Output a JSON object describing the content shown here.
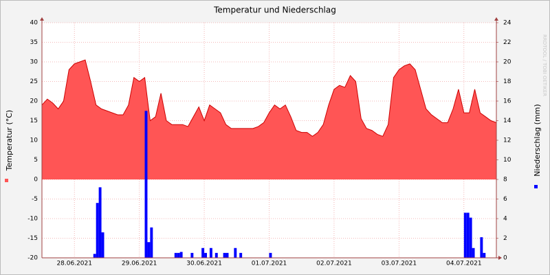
{
  "chart_data": {
    "type": "area-bar",
    "title": "Temperatur und Niederschlag",
    "watermark": "RRDTOOL / TOBI OETIKER",
    "x": [
      0,
      2,
      4,
      6,
      8,
      10,
      12,
      14,
      16,
      18,
      20,
      22,
      24,
      26,
      28,
      30,
      32,
      34,
      36,
      38,
      40,
      42,
      44,
      46,
      48,
      50,
      52,
      54,
      56,
      58,
      60,
      62,
      64,
      66,
      68,
      70,
      72,
      74,
      76,
      78,
      80,
      82,
      84,
      86,
      88,
      90,
      92,
      94,
      96,
      98,
      100,
      102,
      104,
      106,
      108,
      110,
      112,
      114,
      116,
      118,
      120,
      122,
      124,
      126,
      128,
      130,
      132,
      134,
      136,
      138,
      140,
      142,
      144,
      146,
      148,
      150,
      152,
      154,
      156,
      158,
      160,
      162,
      164,
      166,
      168
    ],
    "xlim": [
      0,
      168
    ],
    "xticks": [
      {
        "value": 12,
        "label": "28.06.2021"
      },
      {
        "value": 36,
        "label": "29.06.2021"
      },
      {
        "value": 60,
        "label": "30.06.2021"
      },
      {
        "value": 84,
        "label": "01.07.2021"
      },
      {
        "value": 108,
        "label": "02.07.2021"
      },
      {
        "value": 132,
        "label": "03.07.2021"
      },
      {
        "value": 156,
        "label": "04.07.2021"
      }
    ],
    "ylim": [
      -20,
      40
    ],
    "yticks": [
      -20,
      -15,
      -10,
      -5,
      0,
      5,
      10,
      15,
      20,
      25,
      30,
      35,
      40
    ],
    "y2lim": [
      0,
      24
    ],
    "y2ticks": [
      0,
      2,
      4,
      6,
      8,
      10,
      12,
      14,
      16,
      18,
      20,
      22,
      24
    ],
    "grid": true,
    "series": [
      {
        "name": "Temperatur (°C)",
        "color": "#ff5555",
        "line_color": "#cc0000",
        "values": [
          19,
          20.5,
          19.5,
          18,
          20,
          28,
          29.5,
          30,
          30.5,
          25,
          19,
          18,
          17.5,
          17,
          16.5,
          16.5,
          19,
          26,
          25,
          26,
          15,
          16,
          22,
          15,
          14,
          14,
          14,
          13.5,
          16,
          18.5,
          15,
          19,
          18,
          17,
          14,
          13,
          13,
          13,
          13,
          13,
          13.5,
          14.5,
          17,
          19,
          18,
          19,
          16,
          12.5,
          12,
          12,
          11,
          12,
          14,
          19,
          23,
          24,
          23.5,
          26.5,
          25,
          15.5,
          13,
          12.5,
          11.5,
          11,
          14,
          26,
          28,
          29,
          29.5,
          28,
          23,
          18,
          16.5,
          15.5,
          14.5,
          14.5,
          18,
          23,
          17,
          17,
          23,
          17,
          16,
          15,
          14.5
        ]
      },
      {
        "name": "Niederschlag (mm)",
        "color": "#0000ff",
        "axis": "y2",
        "x": [
          19,
          20,
          21,
          22,
          38,
          39,
          40,
          49,
          50,
          51,
          55,
          59,
          60,
          62,
          64,
          67,
          68,
          71,
          73,
          84,
          156,
          157,
          158,
          159,
          162,
          163
        ],
        "values": [
          0.4,
          5.6,
          7.2,
          2.6,
          15,
          1.6,
          3.1,
          0.5,
          0.5,
          0.6,
          0.5,
          1,
          0.5,
          1,
          0.5,
          0.5,
          0.5,
          1,
          0.5,
          0.5,
          4.6,
          4.6,
          4.1,
          1,
          2.1,
          0.5
        ]
      }
    ]
  }
}
